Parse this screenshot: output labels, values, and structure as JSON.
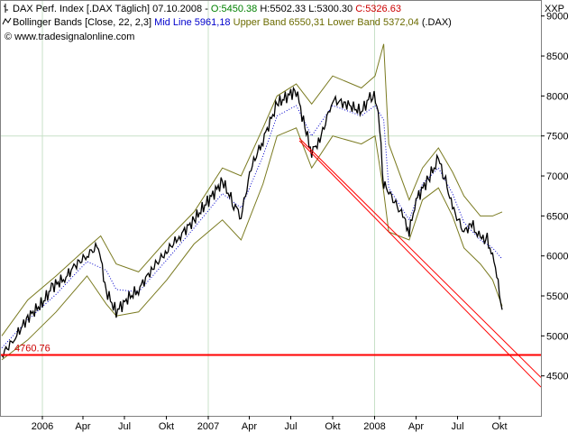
{
  "chart_data": {
    "type": "line",
    "price_scale_label": "XXP",
    "ylim": [
      4000,
      9200
    ],
    "yticks": [
      "4500",
      "5000",
      "5500",
      "6000",
      "6500",
      "7000",
      "7500",
      "8000",
      "8500",
      "9000"
    ],
    "xticks": [
      "2006",
      "Apr",
      "Jul",
      "Okt",
      "2007",
      "Apr",
      "Jul",
      "Okt",
      "2008",
      "Apr",
      "Jul",
      "Okt"
    ],
    "header": {
      "line1_prefix": "DAX Perf. Index [.DAX Täglich] 07.10.2008 -",
      "open": "O:5450.38",
      "high": "H:5502.33",
      "low": "L:5300.30",
      "close": "C:5326.63",
      "line2_prefix": "Bollinger Bands [Close, 22, 2,3]",
      "mid": "Mid Line 5961,18",
      "upper": "Upper Band 6550,31",
      "lower": "Lower Band 5372,04",
      "line2_suffix": "(.DAX)",
      "line3": "© www.tradesignalonline.com"
    },
    "support_label": "4760.76",
    "support_value": 4760.76,
    "colors": {
      "price": "#000000",
      "bands": "#7a7a20",
      "mid": "#0000cc",
      "trend": "#ff0000",
      "support": "#ff0000",
      "grid": "#c8e0c8",
      "open": "#008000",
      "close": "#cc0000",
      "mid_text": "#0000cc",
      "band_text": "#6b6b00"
    },
    "series": [
      {
        "key": "close",
        "x": [
          "2005-10-05",
          "2005-11-01",
          "2005-12-01",
          "2006-01-02",
          "2006-01-25",
          "2006-02-20",
          "2006-03-15",
          "2006-04-10",
          "2006-05-05",
          "2006-05-22",
          "2006-06-13",
          "2006-07-05",
          "2006-08-01",
          "2006-09-01",
          "2006-10-02",
          "2006-11-01",
          "2006-12-01",
          "2007-01-02",
          "2007-02-01",
          "2007-02-26",
          "2007-03-14",
          "2007-04-05",
          "2007-05-01",
          "2007-06-01",
          "2007-07-13",
          "2007-08-01",
          "2007-08-16",
          "2007-09-03",
          "2007-10-01",
          "2007-11-01",
          "2007-12-03",
          "2007-12-28",
          "2008-01-09",
          "2008-01-21",
          "2008-02-01",
          "2008-03-03",
          "2008-03-17",
          "2008-04-01",
          "2008-05-01",
          "2008-05-20",
          "2008-06-02",
          "2008-06-20",
          "2008-07-15",
          "2008-08-01",
          "2008-08-20",
          "2008-09-01",
          "2008-09-16",
          "2008-09-25",
          "2008-10-07"
        ],
        "values": [
          4760,
          4960,
          5230,
          5410,
          5620,
          5720,
          5880,
          6010,
          6130,
          5560,
          5300,
          5450,
          5580,
          5850,
          6060,
          6260,
          6450,
          6700,
          6930,
          6650,
          6500,
          7100,
          7450,
          7900,
          8080,
          7600,
          7300,
          7450,
          7950,
          7900,
          7800,
          8050,
          7800,
          6900,
          6800,
          6500,
          6300,
          6700,
          7000,
          7200,
          7000,
          6600,
          6300,
          6400,
          6200,
          6250,
          6000,
          5750,
          5326
        ]
      },
      {
        "key": "upper",
        "x": [
          "2005-10-05",
          "2005-12-01",
          "2006-02-01",
          "2006-04-10",
          "2006-05-10",
          "2006-06-13",
          "2006-08-01",
          "2006-10-02",
          "2006-12-01",
          "2007-02-01",
          "2007-03-14",
          "2007-05-01",
          "2007-06-01",
          "2007-07-13",
          "2007-08-16",
          "2007-10-01",
          "2007-12-03",
          "2008-01-02",
          "2008-01-21",
          "2008-02-01",
          "2008-03-17",
          "2008-04-15",
          "2008-05-20",
          "2008-06-20",
          "2008-07-15",
          "2008-08-20",
          "2008-09-16",
          "2008-10-07"
        ],
        "values": [
          5000,
          5450,
          5750,
          6100,
          6250,
          5900,
          5800,
          6200,
          6550,
          7100,
          7000,
          7600,
          8000,
          8150,
          7900,
          8250,
          8100,
          8250,
          8650,
          7400,
          6700,
          7100,
          7350,
          7050,
          6750,
          6500,
          6500,
          6550
        ]
      },
      {
        "key": "lower",
        "x": [
          "2005-10-05",
          "2005-12-01",
          "2006-02-01",
          "2006-04-10",
          "2006-05-22",
          "2006-06-13",
          "2006-08-01",
          "2006-10-02",
          "2006-12-01",
          "2007-02-01",
          "2007-03-14",
          "2007-05-01",
          "2007-06-01",
          "2007-07-13",
          "2007-08-16",
          "2007-10-01",
          "2007-12-03",
          "2008-01-02",
          "2008-01-21",
          "2008-02-01",
          "2008-03-17",
          "2008-04-15",
          "2008-05-20",
          "2008-06-20",
          "2008-07-15",
          "2008-08-20",
          "2008-09-16",
          "2008-10-07"
        ],
        "values": [
          4700,
          4950,
          5300,
          5750,
          5400,
          5250,
          5300,
          5700,
          6150,
          6450,
          6200,
          6900,
          7500,
          7600,
          7100,
          7500,
          7400,
          7500,
          6800,
          6300,
          6200,
          6700,
          6850,
          6500,
          6100,
          5900,
          5700,
          5372
        ]
      },
      {
        "key": "mid",
        "x": [
          "2005-10-05",
          "2005-12-01",
          "2006-02-01",
          "2006-04-10",
          "2006-05-22",
          "2006-06-13",
          "2006-08-01",
          "2006-10-02",
          "2006-12-01",
          "2007-02-01",
          "2007-03-14",
          "2007-05-01",
          "2007-06-01",
          "2007-07-13",
          "2007-08-16",
          "2007-10-01",
          "2007-12-03",
          "2008-01-02",
          "2008-01-21",
          "2008-02-01",
          "2008-03-17",
          "2008-04-15",
          "2008-05-20",
          "2008-06-20",
          "2008-07-15",
          "2008-08-20",
          "2008-09-16",
          "2008-10-07"
        ],
        "values": [
          4850,
          5200,
          5520,
          5930,
          5820,
          5580,
          5550,
          5950,
          6350,
          6780,
          6600,
          7250,
          7750,
          7880,
          7500,
          7880,
          7750,
          7880,
          7700,
          6850,
          6450,
          6900,
          7100,
          6780,
          6420,
          6200,
          6100,
          5961
        ]
      }
    ],
    "trendlines": [
      {
        "from": [
          "2007-07-20",
          7470
        ],
        "to": [
          "2008-12-31",
          4480
        ]
      },
      {
        "from": [
          "2007-07-20",
          7440
        ],
        "to": [
          "2008-12-31",
          4360
        ]
      }
    ]
  }
}
